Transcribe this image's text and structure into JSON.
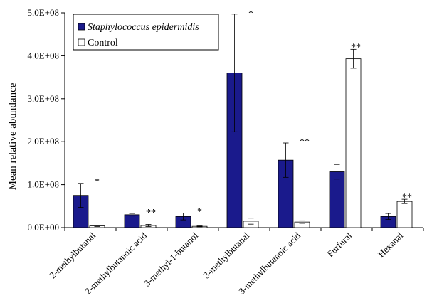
{
  "chart_data": {
    "type": "bar",
    "title": "",
    "xlabel": "",
    "ylabel": "Mean relative abundance",
    "ylim": [
      0,
      500000000
    ],
    "yticks": [
      0,
      100000000,
      200000000,
      300000000,
      400000000,
      500000000
    ],
    "ytick_labels": [
      "0.0E+00",
      "1.0E+08",
      "2.0E+08",
      "3.0E+08",
      "4.0E+08",
      "5.0E+08"
    ],
    "categories": [
      "2-methylbutanal",
      "2-methylbutanoic acid",
      "3-methyl-1-butanol",
      "3-methylbutanal",
      "3-methylbutanoic acid",
      "Furfural",
      "Hexanal"
    ],
    "series": [
      {
        "name": "Staphylococcus epidermidis",
        "color": "#1a1a8c",
        "values": [
          75000000,
          30000000,
          26000000,
          360000000,
          157000000,
          130000000,
          26000000
        ],
        "errors": [
          28000000,
          3000000,
          8000000,
          137000000,
          40000000,
          17000000,
          7000000
        ]
      },
      {
        "name": "Control",
        "color": "#ffffff",
        "values": [
          4000000,
          5000000,
          3000000,
          15000000,
          13000000,
          393000000,
          61000000
        ],
        "errors": [
          1500000,
          2500000,
          1000000,
          7000000,
          3000000,
          22000000,
          5000000
        ]
      }
    ],
    "annotations": [
      {
        "category_index": 0,
        "text": "*",
        "y": 107000000
      },
      {
        "category_index": 1,
        "text": "**",
        "y": 35000000
      },
      {
        "category_index": 2,
        "text": "*",
        "y": 37000000
      },
      {
        "category_index": 3,
        "text": "*",
        "y": 498000000
      },
      {
        "category_index": 4,
        "text": "**",
        "y": 200000000
      },
      {
        "category_index": 5,
        "text": "**",
        "y": 420000000
      },
      {
        "category_index": 6,
        "text": "**",
        "y": 70000000
      }
    ],
    "grid": false,
    "legend_position": "top-left"
  }
}
